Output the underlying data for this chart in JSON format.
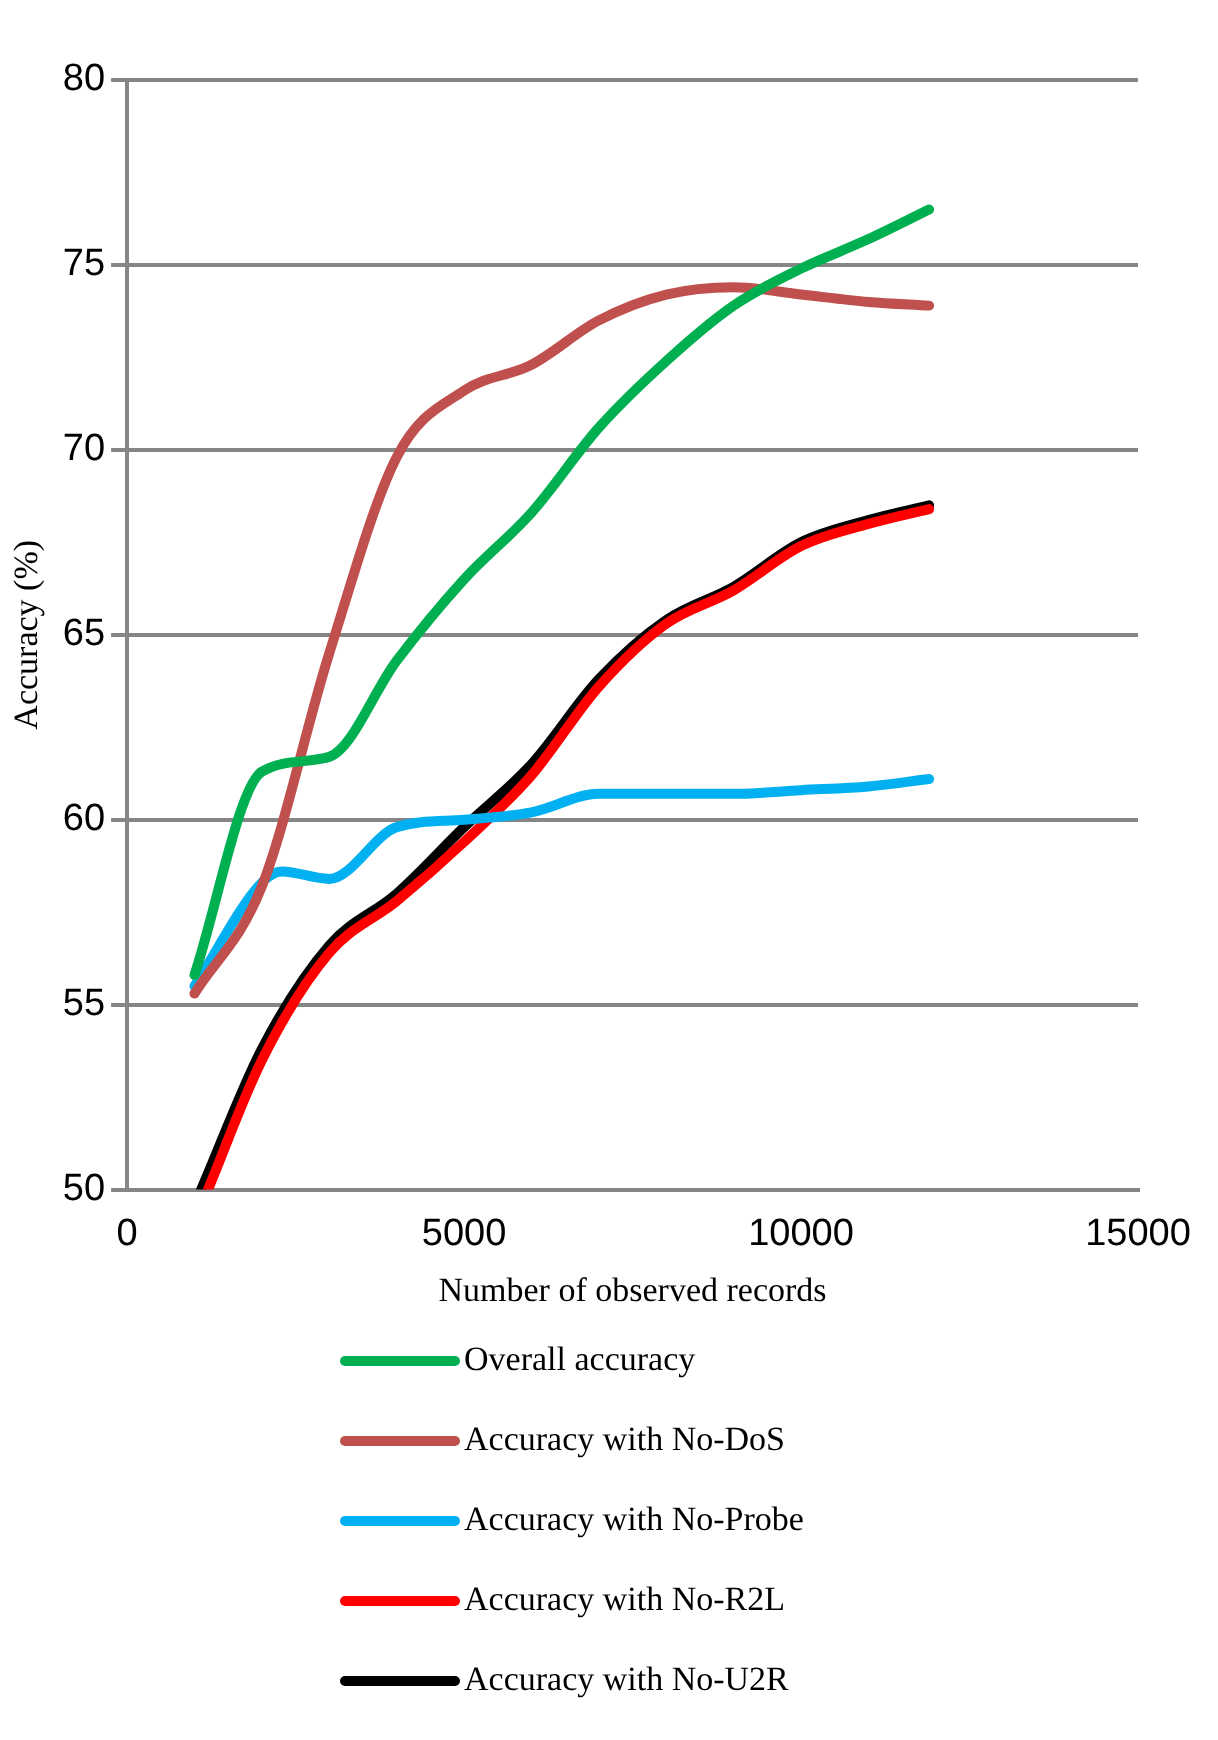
{
  "chart_data": {
    "type": "line",
    "xlabel": "Number of observed records",
    "ylabel": "Accuracy (%)",
    "xlim": [
      0,
      15000
    ],
    "xticks": [
      0,
      5000,
      10000,
      15000
    ],
    "ylim": [
      50,
      80
    ],
    "yticks": [
      50,
      55,
      60,
      65,
      70,
      75,
      80
    ],
    "grid": "y",
    "legend": "bottom",
    "marker": "none",
    "line_style": "solid",
    "series": [
      {
        "name": "Overall accuracy",
        "color": "#00b050",
        "x": [
          1000,
          2000,
          3000,
          4000,
          5000,
          6000,
          7000,
          8000,
          9000,
          10000,
          11000,
          11900
        ],
        "values": [
          55.8,
          61.3,
          61.7,
          64.3,
          66.5,
          68.3,
          70.6,
          72.4,
          73.9,
          74.9,
          75.7,
          76.5
        ]
      },
      {
        "name": "Accuracy with No-DoS",
        "color": "#c0504d",
        "x": [
          1000,
          2000,
          3000,
          4000,
          5000,
          6000,
          7000,
          8000,
          9000,
          10000,
          11000,
          11900
        ],
        "values": [
          55.3,
          58.2,
          64.5,
          69.8,
          71.6,
          72.3,
          73.5,
          74.2,
          74.4,
          74.2,
          74.0,
          73.9
        ]
      },
      {
        "name": "Accuracy with No-Probe",
        "color": "#00b0f0",
        "x": [
          1000,
          2000,
          2300,
          3000,
          4000,
          5000,
          6000,
          7000,
          8000,
          9000,
          10000,
          11000,
          11900
        ],
        "values": [
          55.5,
          58.3,
          58.6,
          58.4,
          59.8,
          60.0,
          60.2,
          60.7,
          60.7,
          60.7,
          60.8,
          60.9,
          61.1
        ]
      },
      {
        "name": "Accuracy with No-R2L",
        "color": "#ff0000",
        "x": [
          1200,
          2000,
          3000,
          4000,
          5000,
          6000,
          7000,
          8000,
          9000,
          10000,
          11000,
          11900
        ],
        "values": [
          50.0,
          53.5,
          56.4,
          57.8,
          59.4,
          61.2,
          63.6,
          65.3,
          66.2,
          67.4,
          68.0,
          68.4
        ]
      },
      {
        "name": "Accuracy with No-U2R",
        "color": "#000000",
        "x": [
          1100,
          2000,
          3000,
          4000,
          5000,
          6000,
          7000,
          8000,
          9000,
          10000,
          11000,
          11900
        ],
        "values": [
          50.0,
          53.8,
          56.6,
          58.0,
          59.8,
          61.5,
          63.8,
          65.4,
          66.3,
          67.5,
          68.1,
          68.5
        ]
      }
    ]
  }
}
